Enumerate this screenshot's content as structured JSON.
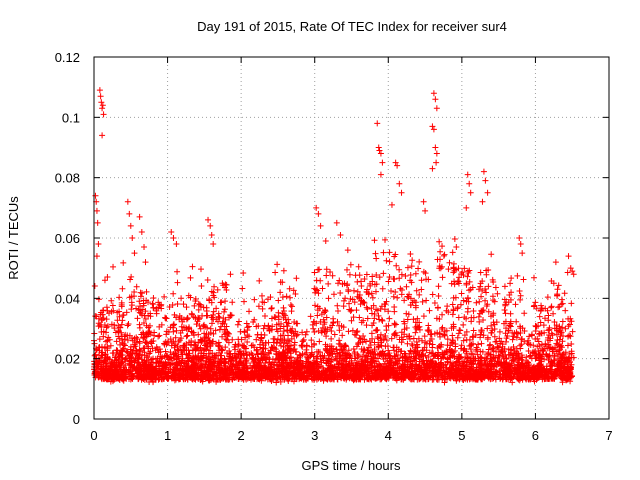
{
  "chart_data": {
    "type": "scatter",
    "title": "Day 191 of 2015, Rate Of TEC Index for receiver sur4",
    "xlabel": "GPS time / hours",
    "ylabel": "ROTI / TECUs",
    "xlim": [
      0,
      7
    ],
    "ylim": [
      0,
      0.12
    ],
    "x_ticks": [
      0,
      1,
      2,
      3,
      4,
      5,
      6,
      7
    ],
    "x_tick_labels": [
      "0",
      "1",
      "2",
      "3",
      "4",
      "5",
      "6",
      "7"
    ],
    "y_ticks": [
      0,
      0.02,
      0.04,
      0.06,
      0.08,
      0.1,
      0.12
    ],
    "y_tick_labels": [
      "0",
      "0.02",
      "0.04",
      "0.06",
      "0.08",
      "0.1",
      "0.12"
    ],
    "grid": true,
    "marker": "+",
    "color": "#ff0000",
    "time_range_hours": [
      0,
      6.5
    ],
    "series": [
      {
        "name": "ROTI",
        "points": [
          [
            0.02,
            0.074
          ],
          [
            0.03,
            0.072
          ],
          [
            0.04,
            0.069
          ],
          [
            0.05,
            0.065
          ],
          [
            0.06,
            0.058
          ],
          [
            0.04,
            0.054
          ],
          [
            0.08,
            0.109
          ],
          [
            0.09,
            0.107
          ],
          [
            0.1,
            0.105
          ],
          [
            0.11,
            0.103
          ],
          [
            0.12,
            0.104
          ],
          [
            0.13,
            0.101
          ],
          [
            0.11,
            0.094
          ],
          [
            0.46,
            0.072
          ],
          [
            0.48,
            0.068
          ],
          [
            0.5,
            0.064
          ],
          [
            0.52,
            0.06
          ],
          [
            0.55,
            0.055
          ],
          [
            0.62,
            0.067
          ],
          [
            0.65,
            0.062
          ],
          [
            0.68,
            0.057
          ],
          [
            0.7,
            0.052
          ],
          [
            1.05,
            0.062
          ],
          [
            1.08,
            0.06
          ],
          [
            1.12,
            0.058
          ],
          [
            1.55,
            0.066
          ],
          [
            1.58,
            0.064
          ],
          [
            1.6,
            0.061
          ],
          [
            1.62,
            0.058
          ],
          [
            3.02,
            0.07
          ],
          [
            3.05,
            0.068
          ],
          [
            3.08,
            0.064
          ],
          [
            3.15,
            0.059
          ],
          [
            3.3,
            0.065
          ],
          [
            3.35,
            0.061
          ],
          [
            3.45,
            0.056
          ],
          [
            3.85,
            0.098
          ],
          [
            3.87,
            0.09
          ],
          [
            3.88,
            0.089
          ],
          [
            3.9,
            0.088
          ],
          [
            3.92,
            0.085
          ],
          [
            3.9,
            0.081
          ],
          [
            4.1,
            0.085
          ],
          [
            4.12,
            0.084
          ],
          [
            4.15,
            0.078
          ],
          [
            4.18,
            0.075
          ],
          [
            4.05,
            0.071
          ],
          [
            4.62,
            0.108
          ],
          [
            4.64,
            0.106
          ],
          [
            4.66,
            0.103
          ],
          [
            4.6,
            0.097
          ],
          [
            4.62,
            0.096
          ],
          [
            4.64,
            0.09
          ],
          [
            4.66,
            0.088
          ],
          [
            4.6,
            0.083
          ],
          [
            4.65,
            0.085
          ],
          [
            4.48,
            0.072
          ],
          [
            4.5,
            0.069
          ],
          [
            5.08,
            0.081
          ],
          [
            5.1,
            0.078
          ],
          [
            5.12,
            0.075
          ],
          [
            5.06,
            0.07
          ],
          [
            5.3,
            0.082
          ],
          [
            5.32,
            0.079
          ],
          [
            5.35,
            0.075
          ],
          [
            5.28,
            0.072
          ],
          [
            5.78,
            0.06
          ],
          [
            5.8,
            0.058
          ],
          [
            5.82,
            0.055
          ],
          [
            6.25,
            0.045
          ],
          [
            6.3,
            0.043
          ],
          [
            6.35,
            0.038
          ],
          [
            6.45,
            0.054
          ],
          [
            6.48,
            0.05
          ],
          [
            6.5,
            0.049
          ],
          [
            6.52,
            0.048
          ]
        ]
      }
    ]
  }
}
